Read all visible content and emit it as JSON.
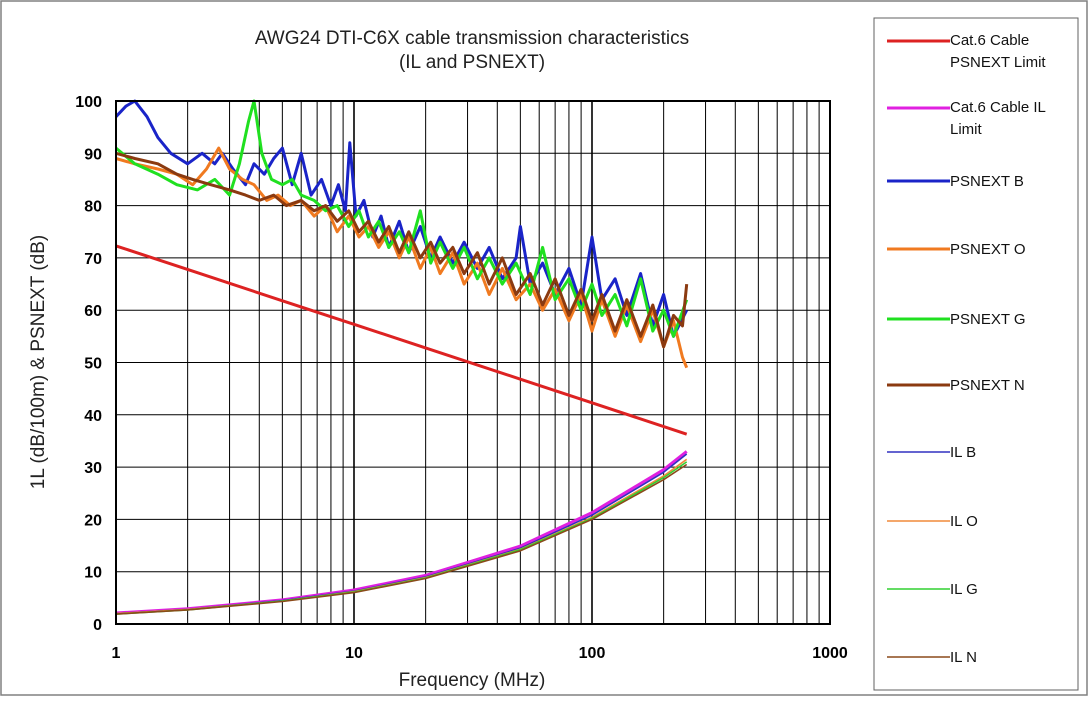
{
  "chart_data": {
    "type": "line",
    "title": "AWG24 DTI-C6X cable transmission characteristics",
    "subtitle": "(IL and PSNEXT)",
    "xlabel": "Frequency (MHz)",
    "ylabel": "1L (dB/100m) & PSNEXT (dB)",
    "x_scale": "log",
    "xlim": [
      1,
      1000
    ],
    "ylim": [
      0,
      100
    ],
    "x_ticks": [
      1,
      10,
      100,
      1000
    ],
    "x_tick_labels": [
      "1",
      "10",
      "100",
      "1000"
    ],
    "y_ticks": [
      0,
      10,
      20,
      30,
      40,
      50,
      60,
      70,
      80,
      90,
      100
    ],
    "y_tick_labels": [
      "0",
      "10",
      "20",
      "30",
      "40",
      "50",
      "60",
      "70",
      "80",
      "90",
      "100"
    ],
    "grid": true,
    "legend_position": "right",
    "series": [
      {
        "name": "Cat.6 Cable PSNEXT Limit",
        "legend_lines": [
          "Cat.6 Cable",
          "PSNEXT Limit"
        ],
        "color": "#dd2222",
        "x": [
          1,
          2,
          5,
          10,
          20,
          50,
          100,
          250
        ],
        "y": [
          72.3,
          67.8,
          61.8,
          57.3,
          52.8,
          46.8,
          42.3,
          36.3
        ]
      },
      {
        "name": "Cat.6 Cable IL Limit",
        "legend_lines": [
          "Cat.6 Cable IL",
          "Limit"
        ],
        "color": "#e020e0",
        "x": [
          1,
          2,
          5,
          10,
          20,
          50,
          100,
          200,
          250
        ],
        "y": [
          2.1,
          2.9,
          4.6,
          6.5,
          9.3,
          14.9,
          21.3,
          29.5,
          33
        ]
      },
      {
        "name": "PSNEXT B",
        "legend_lines": [
          "PSNEXT B"
        ],
        "color": "#1a24c8",
        "x": [
          1,
          1.1,
          1.2,
          1.35,
          1.5,
          1.7,
          2,
          2.3,
          2.6,
          2.8,
          3.1,
          3.5,
          3.8,
          4.2,
          4.6,
          5,
          5.5,
          6,
          6.6,
          7.3,
          8,
          8.6,
          9.2,
          9.6,
          10.2,
          11,
          12,
          13,
          14,
          15.5,
          17,
          19,
          21,
          23,
          26,
          29,
          33,
          37,
          42,
          48,
          50,
          55,
          62,
          70,
          80,
          90,
          100,
          110,
          125,
          140,
          160,
          180,
          200,
          220,
          250
        ],
        "y": [
          97,
          99,
          100,
          97,
          93,
          90,
          88,
          90,
          88,
          90,
          87,
          84,
          88,
          86,
          89,
          91,
          84,
          90,
          82,
          85,
          80,
          84,
          79,
          92,
          78,
          81,
          74,
          78,
          72,
          77,
          71,
          76,
          70,
          74,
          69,
          73,
          68,
          72,
          66,
          70,
          76,
          65,
          69,
          63,
          68,
          61,
          74,
          62,
          66,
          59,
          67,
          57,
          63,
          55,
          60
        ]
      },
      {
        "name": "PSNEXT O",
        "legend_lines": [
          "PSNEXT O"
        ],
        "color": "#f07a20",
        "x": [
          1,
          1.2,
          1.5,
          1.8,
          2.1,
          2.4,
          2.7,
          3,
          3.4,
          3.8,
          4.3,
          4.8,
          5.4,
          6,
          6.8,
          7.6,
          8.5,
          9.5,
          10.5,
          11.5,
          12.7,
          14,
          15.5,
          17,
          19,
          21,
          23,
          26,
          29,
          33,
          37,
          42,
          48,
          55,
          62,
          70,
          80,
          90,
          100,
          110,
          125,
          140,
          160,
          180,
          200,
          220,
          240,
          250
        ],
        "y": [
          89,
          88,
          87,
          86,
          84,
          87,
          91,
          87,
          85,
          84,
          81,
          82,
          80,
          81,
          78,
          80,
          75,
          78,
          74,
          76,
          72,
          75,
          70,
          74,
          68,
          72,
          67,
          71,
          65,
          69,
          63,
          68,
          62,
          65,
          60,
          64,
          58,
          63,
          56,
          62,
          55,
          61,
          54,
          60,
          53,
          58,
          51,
          49
        ]
      },
      {
        "name": "PSNEXT G",
        "legend_lines": [
          "PSNEXT G"
        ],
        "color": "#20e020",
        "x": [
          1,
          1.2,
          1.5,
          1.8,
          2.2,
          2.6,
          3,
          3.3,
          3.6,
          3.8,
          4.1,
          4.5,
          5,
          5.5,
          6,
          6.8,
          7.6,
          8.5,
          9.5,
          10.5,
          11.5,
          12.7,
          14,
          15.5,
          17,
          19,
          21,
          23,
          26,
          29,
          33,
          37,
          42,
          48,
          55,
          62,
          70,
          80,
          90,
          100,
          110,
          125,
          140,
          160,
          180,
          200,
          220,
          250
        ],
        "y": [
          91,
          88,
          86,
          84,
          83,
          85,
          82,
          88,
          96,
          100,
          90,
          85,
          84,
          85,
          82,
          81,
          79,
          80,
          76,
          79,
          74,
          77,
          72,
          75,
          71,
          79,
          69,
          73,
          68,
          72,
          66,
          70,
          65,
          69,
          63,
          72,
          62,
          66,
          60,
          65,
          59,
          63,
          57,
          66,
          56,
          60,
          55,
          62
        ]
      },
      {
        "name": "PSNEXT N",
        "legend_lines": [
          "PSNEXT N"
        ],
        "color": "#8b3a10",
        "x": [
          1,
          1.2,
          1.5,
          1.8,
          2.1,
          2.5,
          3,
          3.5,
          4,
          4.6,
          5.2,
          6,
          6.8,
          7.6,
          8.5,
          9.5,
          10.5,
          11.5,
          12.7,
          14,
          15.5,
          17,
          19,
          21,
          23,
          26,
          29,
          33,
          37,
          42,
          48,
          55,
          62,
          70,
          80,
          90,
          100,
          110,
          125,
          140,
          160,
          180,
          200,
          220,
          240,
          250
        ],
        "y": [
          90,
          89,
          88,
          86,
          85,
          84,
          83,
          82,
          81,
          82,
          80,
          81,
          79,
          80,
          77,
          79,
          75,
          77,
          73,
          76,
          71,
          75,
          70,
          73,
          69,
          72,
          67,
          71,
          65,
          70,
          63,
          67,
          61,
          66,
          59,
          64,
          58,
          63,
          56,
          62,
          55,
          61,
          53,
          59,
          57,
          65
        ]
      },
      {
        "name": "IL B",
        "legend_lines": [
          "IL B"
        ],
        "color": "#3030c0",
        "x": [
          1,
          2,
          5,
          10,
          20,
          50,
          100,
          200,
          250
        ],
        "y": [
          2.0,
          2.8,
          4.5,
          6.3,
          9.0,
          14.5,
          20.8,
          29.0,
          32.5
        ]
      },
      {
        "name": "IL O",
        "legend_lines": [
          "IL O"
        ],
        "color": "#f08a3a",
        "x": [
          1,
          2,
          5,
          10,
          20,
          50,
          100,
          200,
          250
        ],
        "y": [
          2.0,
          2.8,
          4.4,
          6.2,
          8.9,
          14.3,
          20.4,
          28.3,
          31.5
        ]
      },
      {
        "name": "IL G",
        "legend_lines": [
          "IL G"
        ],
        "color": "#30d030",
        "x": [
          1,
          2,
          5,
          10,
          20,
          50,
          100,
          200,
          250
        ],
        "y": [
          1.9,
          2.7,
          4.4,
          6.1,
          8.8,
          14.2,
          20.2,
          28.0,
          31.0
        ]
      },
      {
        "name": "IL N",
        "legend_lines": [
          "IL N"
        ],
        "color": "#8b4a1a",
        "x": [
          1,
          2,
          5,
          10,
          20,
          50,
          100,
          200,
          250
        ],
        "y": [
          1.9,
          2.7,
          4.3,
          6.0,
          8.7,
          14.0,
          20.0,
          27.6,
          30.5
        ]
      }
    ]
  }
}
